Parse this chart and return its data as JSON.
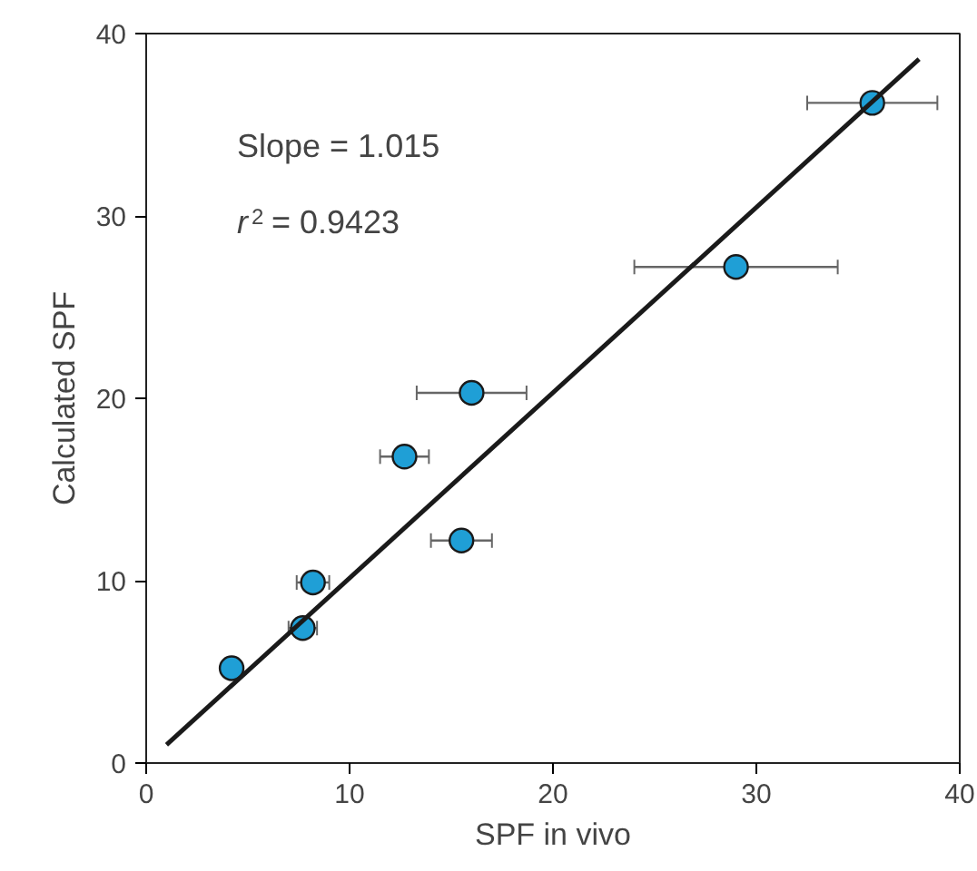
{
  "chart_data": {
    "type": "scatter",
    "xlabel": "SPF in vivo",
    "ylabel": "Calculated SPF",
    "xlim": [
      0,
      40
    ],
    "ylim": [
      0,
      40
    ],
    "xticks": [
      0,
      10,
      20,
      30,
      40
    ],
    "yticks": [
      0,
      10,
      20,
      30,
      40
    ],
    "grid": false,
    "annotations": [
      "Slope = 1.015",
      "r$^{2}$ = 0.9423"
    ],
    "series": [
      {
        "marker": "circle",
        "color": "#1f9fd6",
        "x": [
          4.2,
          7.7,
          8.2,
          12.7,
          16.0,
          15.5,
          29.0,
          35.7
        ],
        "values": [
          5.2,
          7.4,
          9.9,
          16.8,
          20.3,
          12.2,
          27.2,
          36.2
        ],
        "xerrors": [
          null,
          0.7,
          0.8,
          1.2,
          2.7,
          1.5,
          5.0,
          3.2
        ]
      },
      {
        "type": "line",
        "marker": "none",
        "color": "#1a1a1a",
        "x": [
          1,
          38
        ],
        "values": [
          1.0,
          38.6
        ],
        "line_style": "solid"
      }
    ]
  }
}
